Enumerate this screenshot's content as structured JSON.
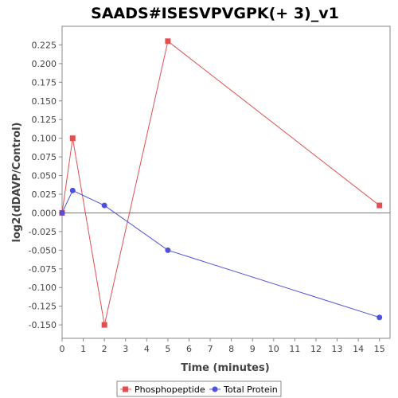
{
  "chart_data": {
    "type": "line",
    "title": "SAADS#ISESVPVGPK(+ 3)_v1",
    "xlabel": "Time (minutes)",
    "ylabel": "log2(dDAVP/Control)",
    "xlim": [
      0,
      15.5
    ],
    "ylim": [
      -0.168,
      0.25
    ],
    "x_ticks": [
      0,
      1,
      2,
      3,
      4,
      5,
      6,
      7,
      8,
      9,
      10,
      11,
      12,
      13,
      14,
      15
    ],
    "y_ticks": [
      -0.15,
      -0.125,
      -0.1,
      -0.075,
      -0.05,
      -0.025,
      0.0,
      0.025,
      0.05,
      0.075,
      0.1,
      0.125,
      0.15,
      0.175,
      0.2,
      0.225
    ],
    "y_tick_labels": [
      "-0.150",
      "-0.125",
      "-0.100",
      "-0.075",
      "-0.050",
      "-0.025",
      "0.000",
      "0.025",
      "0.050",
      "0.075",
      "0.100",
      "0.125",
      "0.150",
      "0.175",
      "0.200",
      "0.225"
    ],
    "zero_line": true,
    "grid": false,
    "legend_position": "bottom",
    "series": [
      {
        "name": "Phosphopeptide",
        "color": "#e05050",
        "marker": "square",
        "x": [
          0,
          0.5,
          2,
          5,
          15
        ],
        "y": [
          0.0,
          0.1,
          -0.15,
          0.23,
          0.01
        ]
      },
      {
        "name": "Total Protein",
        "color": "#5050e0",
        "marker": "circle",
        "x": [
          0,
          0.5,
          2,
          5,
          15
        ],
        "y": [
          0.0,
          0.03,
          0.01,
          -0.05,
          -0.14
        ]
      }
    ]
  }
}
